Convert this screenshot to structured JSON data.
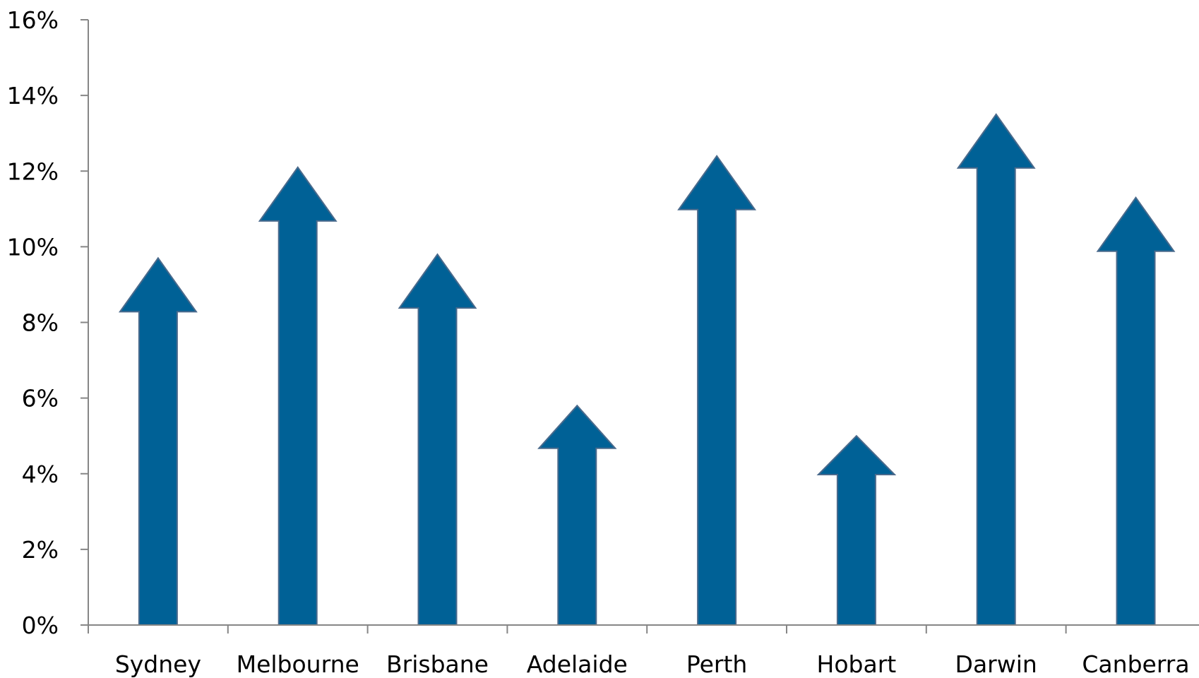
{
  "chart_data": {
    "type": "bar",
    "bar_style": "arrow",
    "title": "",
    "xlabel": "",
    "ylabel": "",
    "categories": [
      "Sydney",
      "Melbourne",
      "Brisbane",
      "Adelaide",
      "Perth",
      "Hobart",
      "Darwin",
      "Canberra"
    ],
    "values": [
      9.7,
      12.1,
      9.8,
      5.8,
      12.4,
      5.0,
      13.5,
      11.3
    ],
    "ylim": [
      0,
      16
    ],
    "yticks": [
      0,
      2,
      4,
      6,
      8,
      10,
      12,
      14,
      16
    ],
    "ytick_labels": [
      "0%",
      "2%",
      "4%",
      "6%",
      "8%",
      "10%",
      "12%",
      "14%",
      "16%"
    ],
    "grid": false,
    "legend": "none",
    "colors": {
      "bar_fill": "#006196",
      "bar_stroke": "#4a6a8c",
      "axis": "#868686",
      "text": "#000000"
    }
  }
}
